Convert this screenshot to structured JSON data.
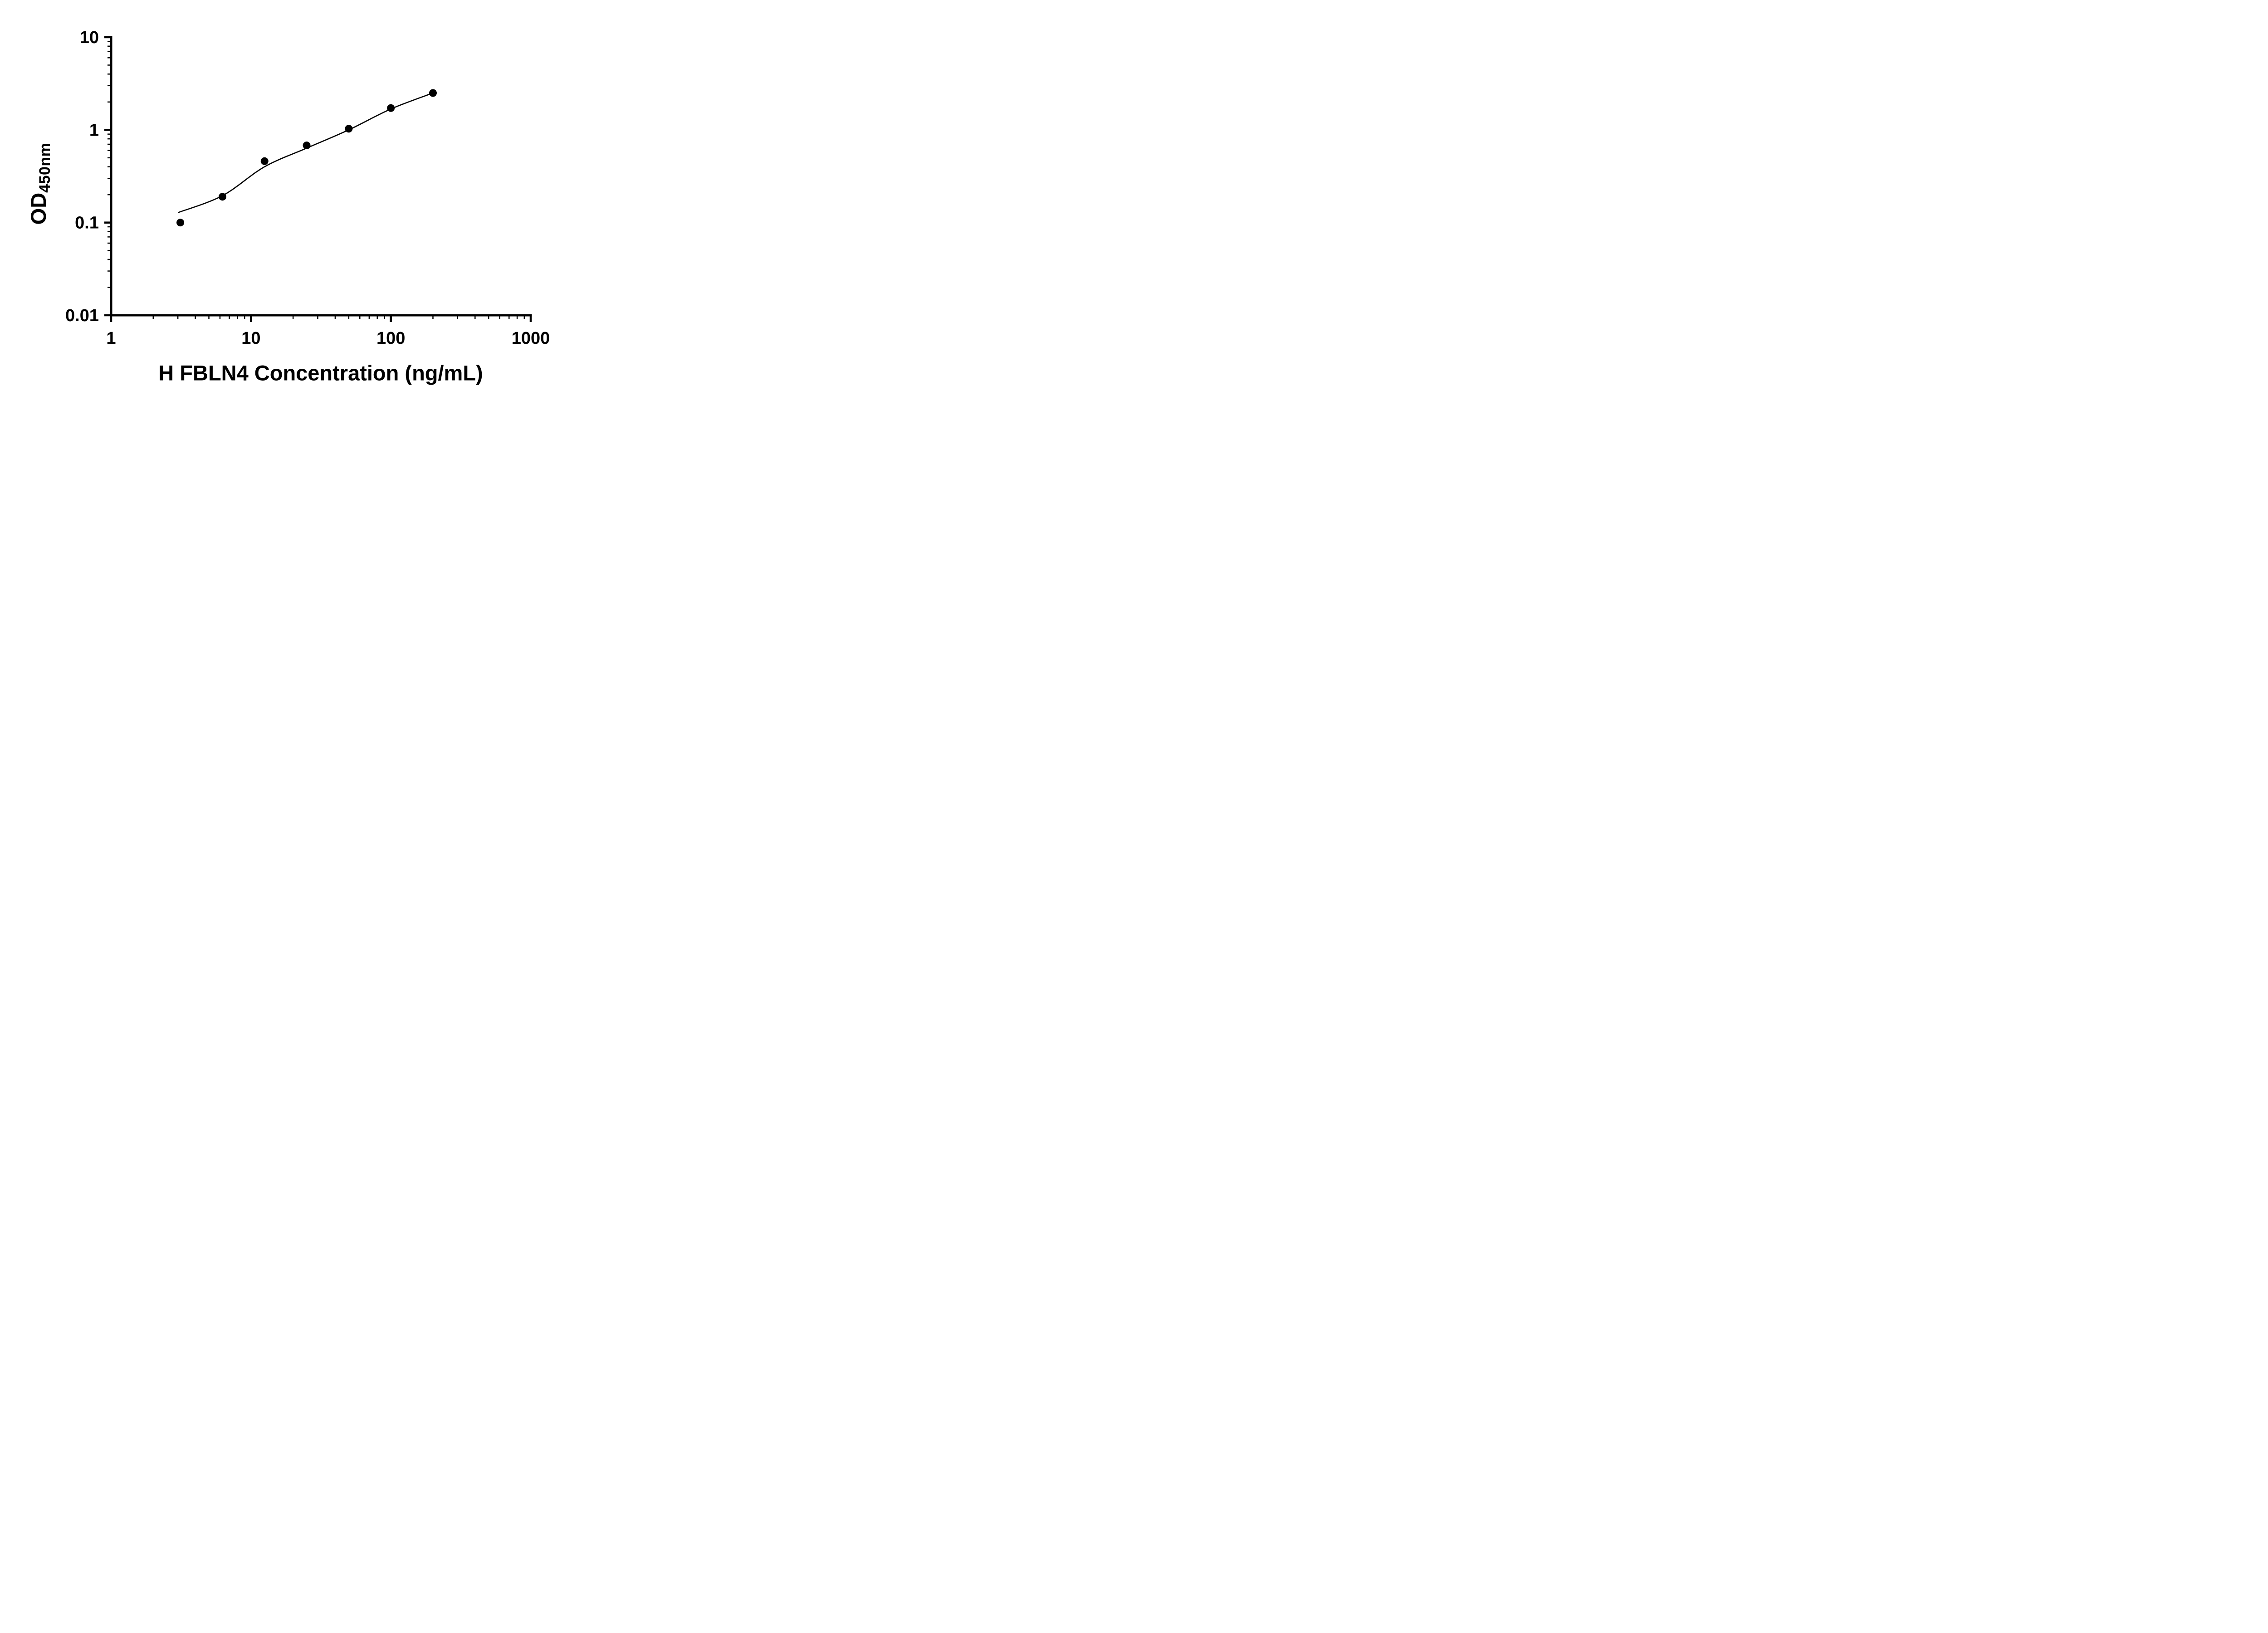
{
  "figure": {
    "background": "#ffffff"
  },
  "chart_data": {
    "type": "scatter",
    "title": "",
    "xlabel": "H FBLN4 Concentration (ng/mL)",
    "ylabel": "OD450nm",
    "ylabel_main": "OD",
    "ylabel_sub": "450nm",
    "x_scale": "log",
    "y_scale": "log",
    "xlim": [
      1,
      1000
    ],
    "ylim": [
      0.01,
      10
    ],
    "x_ticks": [
      1,
      10,
      100,
      1000
    ],
    "x_tick_labels": [
      "1",
      "10",
      "100",
      "1000"
    ],
    "y_ticks": [
      0.01,
      0.1,
      1,
      10
    ],
    "y_tick_labels": [
      "0.01",
      "0.1",
      "1",
      "10"
    ],
    "grid": false,
    "legend": null,
    "axis_color": "#000000",
    "marker_color": "#000000",
    "line_color": "#000000",
    "points": {
      "x": [
        3.125,
        6.25,
        12.5,
        25,
        50,
        100,
        200
      ],
      "y": [
        0.1,
        0.19,
        0.46,
        0.68,
        1.03,
        1.72,
        2.5
      ]
    },
    "fit_curve": {
      "x": [
        3.0,
        6.25,
        12.5,
        25,
        50,
        100,
        200
      ],
      "y": [
        0.128,
        0.195,
        0.4,
        0.635,
        1.0,
        1.68,
        2.5
      ]
    }
  }
}
